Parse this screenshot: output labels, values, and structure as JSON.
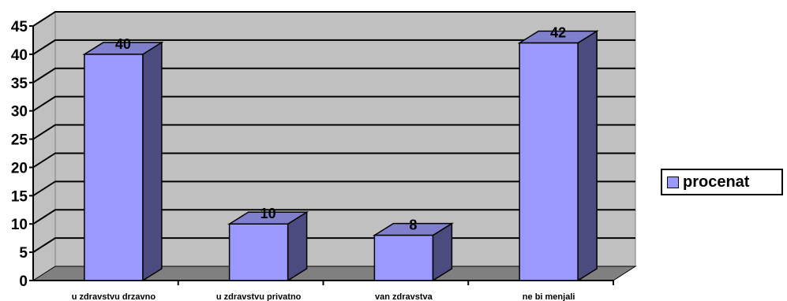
{
  "chart_data": {
    "type": "bar",
    "categories": [
      "u zdravstvu drzavno",
      "u zdravstvu privatno",
      "van zdravstva",
      "ne bi menjali"
    ],
    "series": [
      {
        "name": "procenat",
        "values": [
          40,
          10,
          8,
          42
        ]
      }
    ],
    "ylim": [
      0,
      45
    ],
    "yticks": [
      0,
      5,
      10,
      15,
      20,
      25,
      30,
      35,
      40,
      45
    ],
    "grid": true,
    "legend": "right",
    "colors": {
      "bar_front": "#9999ff",
      "bar_side": "#4b4b7f",
      "bar_top": "#7f7fcc",
      "wall": "#c0c0c0",
      "floor": "#808080"
    }
  }
}
